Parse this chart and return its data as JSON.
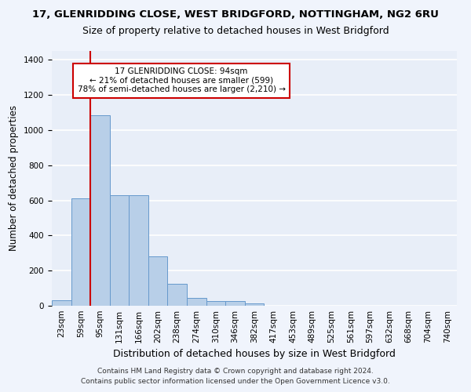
{
  "title1": "17, GLENRIDDING CLOSE, WEST BRIDGFORD, NOTTINGHAM, NG2 6RU",
  "title2": "Size of property relative to detached houses in West Bridgford",
  "xlabel": "Distribution of detached houses by size in West Bridgford",
  "ylabel": "Number of detached properties",
  "footnote1": "Contains HM Land Registry data © Crown copyright and database right 2024.",
  "footnote2": "Contains public sector information licensed under the Open Government Licence v3.0.",
  "bar_labels": [
    "23sqm",
    "59sqm",
    "95sqm",
    "131sqm",
    "166sqm",
    "202sqm",
    "238sqm",
    "274sqm",
    "310sqm",
    "346sqm",
    "382sqm",
    "417sqm",
    "453sqm",
    "489sqm",
    "525sqm",
    "561sqm",
    "597sqm",
    "632sqm",
    "668sqm",
    "704sqm",
    "740sqm"
  ],
  "bar_values": [
    30,
    610,
    1085,
    630,
    630,
    280,
    125,
    45,
    25,
    25,
    12,
    0,
    0,
    0,
    0,
    0,
    0,
    0,
    0,
    0,
    0
  ],
  "bar_color": "#b8cfe8",
  "bar_edge_color": "#6699cc",
  "bg_color": "#e8eef8",
  "grid_color": "#ffffff",
  "annotation_text": "17 GLENRIDDING CLOSE: 94sqm\n← 21% of detached houses are smaller (599)\n78% of semi-detached houses are larger (2,210) →",
  "annotation_box_color": "#ffffff",
  "annotation_box_edge": "#cc0000",
  "vline_color": "#cc0000",
  "ylim": [
    0,
    1450
  ],
  "yticks": [
    0,
    200,
    400,
    600,
    800,
    1000,
    1200,
    1400
  ],
  "title1_fontsize": 9.5,
  "title2_fontsize": 9,
  "xlabel_fontsize": 9,
  "ylabel_fontsize": 8.5,
  "tick_fontsize": 7.5,
  "annot_fontsize": 7.5,
  "footnote_fontsize": 6.5
}
